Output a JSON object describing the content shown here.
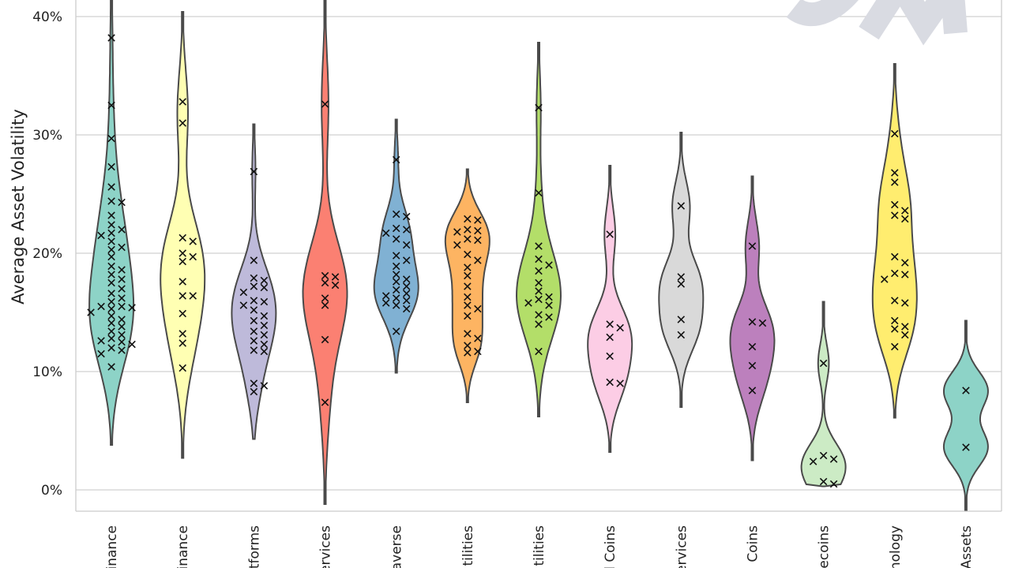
{
  "chart_data": {
    "type": "violin",
    "title": "",
    "xlabel": "",
    "ylabel": "Average Asset Volatility",
    "ylim": [
      -1.7,
      42
    ],
    "yticks": [
      0,
      10,
      20,
      30,
      40
    ],
    "ytick_labels": [
      "0%",
      "10%",
      "20%",
      "30%",
      "40%"
    ],
    "grid": true,
    "categories": [
      {
        "label": "inance",
        "color": "#8dd3c7",
        "range": [
          3.8,
          42
        ],
        "points": [
          38.2,
          32.5,
          29.7,
          27.3,
          25.6,
          24.4,
          24.3,
          23.2,
          22.4,
          22.0,
          21.7,
          21.5,
          21.0,
          20.5,
          20.3,
          19.7,
          18.9,
          18.6,
          18.2,
          17.8,
          17.5,
          17.0,
          16.6,
          16.2,
          15.9,
          15.5,
          15.5,
          15.4,
          15.3,
          15.0,
          14.7,
          14.4,
          14.1,
          13.8,
          13.4,
          13.1,
          12.8,
          12.6,
          12.5,
          12.3,
          12.0,
          11.8,
          11.5,
          10.4
        ]
      },
      {
        "label": "inance",
        "color": "#ffffb3",
        "range": [
          2.7,
          40.4
        ],
        "points": [
          32.8,
          31.0,
          21.3,
          21.0,
          20.0,
          19.7,
          19.3,
          17.6,
          16.4,
          16.4,
          14.9,
          13.2,
          12.4,
          10.3
        ]
      },
      {
        "label": "tforms",
        "color": "#bebada",
        "range": [
          4.3,
          30.9
        ],
        "points": [
          26.9,
          19.4,
          17.9,
          17.7,
          17.2,
          17.1,
          16.7,
          16.0,
          15.9,
          15.6,
          15.2,
          14.7,
          14.3,
          13.9,
          13.4,
          13.1,
          12.6,
          12.3,
          11.8,
          11.7,
          9.0,
          8.8,
          8.3
        ]
      },
      {
        "label": "ervices",
        "color": "#fb8072",
        "range": [
          -1.2,
          41.4
        ],
        "points": [
          32.6,
          18.1,
          18.0,
          17.5,
          17.3,
          16.2,
          15.6,
          12.7,
          7.4
        ]
      },
      {
        "label": "averse",
        "color": "#80b1d3",
        "range": [
          9.9,
          31.3
        ],
        "points": [
          27.9,
          23.3,
          23.1,
          22.1,
          22.0,
          21.7,
          21.2,
          20.7,
          19.8,
          19.4,
          18.9,
          18.2,
          17.8,
          17.6,
          17.2,
          16.9,
          16.6,
          16.4,
          16.2,
          16.0,
          15.8,
          15.6,
          15.3,
          13.4
        ]
      },
      {
        "label": "tilities",
        "color": "#fdb462",
        "range": [
          7.4,
          27.1
        ],
        "points": [
          22.9,
          22.8,
          22.0,
          21.9,
          21.8,
          21.2,
          21.1,
          20.7,
          19.9,
          19.4,
          18.8,
          18.1,
          17.2,
          16.3,
          15.6,
          15.3,
          14.7,
          13.2,
          12.8,
          12.2,
          11.7,
          11.6
        ]
      },
      {
        "label": "tilities",
        "color": "#b3de69",
        "range": [
          6.2,
          37.8
        ],
        "points": [
          32.3,
          25.1,
          20.6,
          19.5,
          19.0,
          18.5,
          17.5,
          16.8,
          16.3,
          16.1,
          15.8,
          15.6,
          14.8,
          14.6,
          14.0,
          11.7
        ]
      },
      {
        "label": "l Coins",
        "color": "#fccde5",
        "range": [
          3.2,
          27.4
        ],
        "points": [
          21.6,
          14.0,
          13.7,
          12.9,
          11.3,
          9.1,
          9.0
        ]
      },
      {
        "label": "ervices",
        "color": "#d9d9d9",
        "range": [
          7.0,
          30.2
        ],
        "points": [
          24.0,
          18.0,
          17.4,
          14.4,
          13.1
        ]
      },
      {
        "label": "Coins",
        "color": "#bc80bd",
        "range": [
          2.5,
          26.5
        ],
        "points": [
          20.6,
          14.2,
          14.1,
          12.1,
          10.5,
          8.4
        ]
      },
      {
        "label": "ecoins",
        "color": "#ccebc5",
        "range": [
          0.3,
          15.9
        ],
        "points": [
          10.7,
          2.9,
          2.6,
          2.4,
          0.7,
          0.5
        ]
      },
      {
        "label": "nology",
        "color": "#ffed6f",
        "range": [
          6.1,
          36.0
        ],
        "points": [
          30.1,
          26.8,
          26.0,
          24.1,
          23.6,
          23.2,
          22.9,
          19.7,
          19.2,
          18.3,
          18.2,
          17.8,
          16.0,
          15.8,
          14.3,
          13.8,
          13.6,
          13.1,
          12.1
        ]
      },
      {
        "label": "Assets",
        "color": "#8dd3c7",
        "range": [
          -1.7,
          14.3
        ],
        "points": [
          8.4,
          3.6
        ]
      }
    ]
  }
}
